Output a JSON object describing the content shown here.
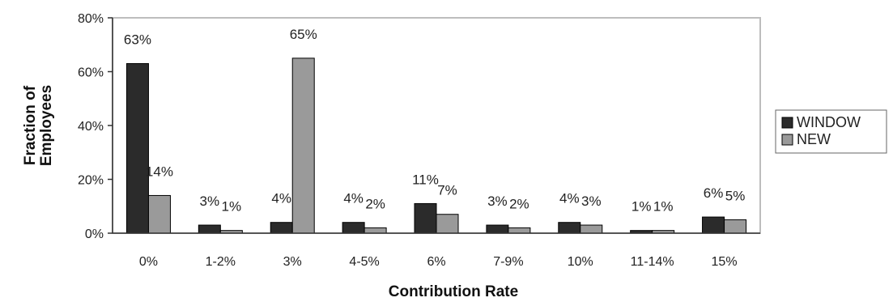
{
  "chart_data": {
    "type": "bar",
    "title": "",
    "xlabel": "Contribution Rate",
    "ylabel": "Fraction of Employees",
    "ylabel_lines": [
      "Fraction of",
      "Employees"
    ],
    "ylim": [
      0,
      80
    ],
    "yticks": [
      0,
      20,
      40,
      60,
      80
    ],
    "ytick_labels": [
      "0%",
      "20%",
      "40%",
      "60%",
      "80%"
    ],
    "categories": [
      "0%",
      "1-2%",
      "3%",
      "4-5%",
      "6%",
      "7-9%",
      "10%",
      "11-14%",
      "15%"
    ],
    "series": [
      {
        "name": "WINDOW",
        "color": "#2b2b2b",
        "values": [
          63,
          3,
          4,
          4,
          11,
          3,
          4,
          1,
          6
        ],
        "labels": [
          "63%",
          "3%",
          "4%",
          "4%",
          "11%",
          "3%",
          "4%",
          "1%",
          "6%"
        ]
      },
      {
        "name": "NEW",
        "color": "#9a9a9a",
        "values": [
          14,
          1,
          65,
          2,
          7,
          2,
          3,
          1,
          5
        ],
        "labels": [
          "14%",
          "1%",
          "65%",
          "2%",
          "7%",
          "2%",
          "3%",
          "1%",
          "5%"
        ]
      }
    ],
    "grid": false,
    "legend_position": "right"
  }
}
